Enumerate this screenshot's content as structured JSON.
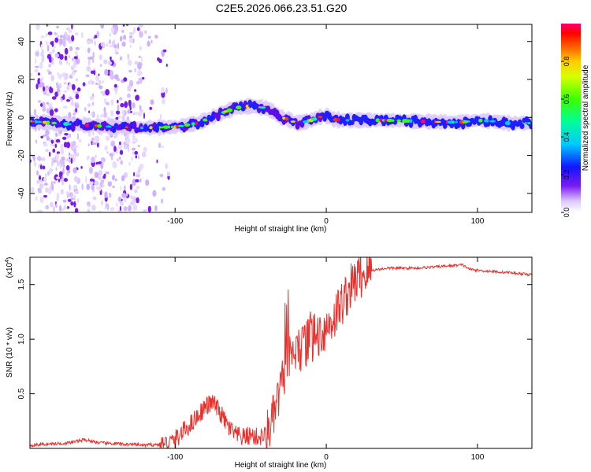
{
  "title": "C2E5.2026.066.23.51.G20",
  "chart_data": [
    {
      "type": "heatmap",
      "xlabel": "Height of straight line (km)",
      "ylabel": "Frequency (Hz)",
      "xlim": [
        -196,
        136
      ],
      "ylim": [
        -50,
        49
      ],
      "xticks": [
        -100,
        0,
        100
      ],
      "yticks": [
        -40,
        -20,
        0,
        20,
        40
      ],
      "xtick_labels": [
        "-100",
        "0",
        "100"
      ],
      "ytick_labels": [
        "-40",
        "-20",
        "0",
        "20",
        "40"
      ],
      "ridge": {
        "x": [
          -196,
          -180,
          -160,
          -140,
          -120,
          -100,
          -85,
          -70,
          -60,
          -50,
          -40,
          -35,
          -30,
          -25,
          -20,
          -15,
          -10,
          -5,
          0,
          5,
          10,
          20,
          40,
          60,
          80,
          90,
          100,
          110,
          120,
          136
        ],
        "y": [
          -2,
          -3,
          -4,
          -5,
          -5.5,
          -5,
          -3,
          2,
          5,
          6,
          5,
          3,
          0,
          -1,
          -3,
          -2.5,
          -1.5,
          0,
          1,
          -1,
          -1.5,
          -1.5,
          -1.5,
          -2,
          -2.5,
          -2.5,
          -1.5,
          -2,
          -3,
          -3
        ]
      },
      "colorbar": {
        "label": "Normalized spectral amplitude",
        "range": [
          0,
          1
        ],
        "ticks": [
          0.0,
          0.2,
          0.4,
          0.6,
          0.8
        ],
        "tick_labels": [
          "0.0",
          "0.2",
          "0.4",
          "0.6",
          "0.8"
        ]
      }
    },
    {
      "type": "line",
      "xlabel": "Height of straight line (km)",
      "ylabel": "SNR (10 * v/v)",
      "yscale_label": "(x10",
      "yscale_exp": "4",
      "xlim": [
        -196,
        136
      ],
      "ylim": [
        0,
        1.75
      ],
      "xticks": [
        -100,
        0,
        100
      ],
      "yticks": [
        0.5,
        1.0,
        1.5
      ],
      "xtick_labels": [
        "-100",
        "0",
        "100"
      ],
      "ytick_labels": [
        "0.5",
        "1.0",
        "1.5"
      ],
      "series": [
        {
          "name": "SNR",
          "color": "#e8302c",
          "x": [
            -196,
            -170,
            -160,
            -150,
            -120,
            -105,
            -100,
            -95,
            -90,
            -85,
            -80,
            -75,
            -70,
            -65,
            -60,
            -55,
            -50,
            -45,
            -40,
            -35,
            -30,
            -27,
            -25,
            -20,
            -15,
            -10,
            -5,
            0,
            5,
            10,
            15,
            20,
            25,
            30,
            35,
            40,
            50,
            60,
            70,
            80,
            90,
            95,
            100,
            110,
            120,
            136
          ],
          "y": [
            0.03,
            0.05,
            0.08,
            0.05,
            0.03,
            0.04,
            0.08,
            0.15,
            0.22,
            0.3,
            0.38,
            0.42,
            0.32,
            0.2,
            0.12,
            0.1,
            0.12,
            0.1,
            0.12,
            0.28,
            0.55,
            0.75,
            0.8,
            0.88,
            0.92,
            1.0,
            1.05,
            1.1,
            1.2,
            1.32,
            1.45,
            1.55,
            1.6,
            1.63,
            1.64,
            1.65,
            1.65,
            1.65,
            1.66,
            1.67,
            1.68,
            1.64,
            1.63,
            1.62,
            1.61,
            1.59
          ]
        }
      ]
    }
  ]
}
